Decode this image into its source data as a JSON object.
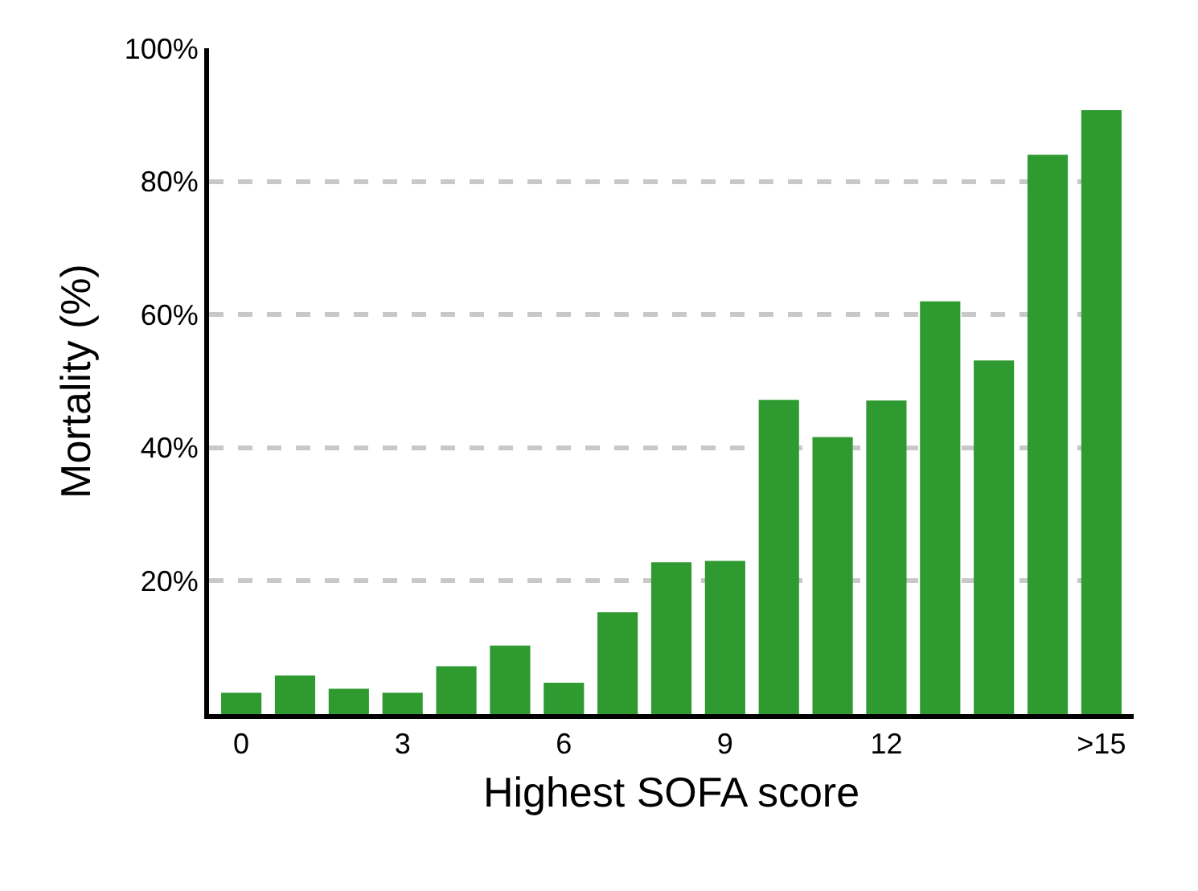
{
  "chart_data": {
    "type": "bar",
    "xlabel": "Highest SOFA score",
    "ylabel": "Mortality (%)",
    "categories": [
      "0",
      null,
      null,
      "3",
      null,
      null,
      "6",
      null,
      null,
      "9",
      null,
      null,
      "12",
      null,
      null,
      null,
      ">15"
    ],
    "values": [
      3.2,
      5.8,
      3.8,
      3.2,
      7.2,
      10.3,
      4.7,
      15.3,
      22.8,
      23,
      47.2,
      41.6,
      47.1,
      62,
      53.1,
      84,
      90.7
    ],
    "color": "#2e9a30",
    "ylim": [
      0,
      100
    ],
    "yticks": [
      {
        "value": 20,
        "label": "20%"
      },
      {
        "value": 40,
        "label": "40%"
      },
      {
        "value": 60,
        "label": "60%"
      },
      {
        "value": 80,
        "label": "80%"
      },
      {
        "value": 100,
        "label": "100%"
      }
    ],
    "grid": "y",
    "line_style": "dashed"
  }
}
